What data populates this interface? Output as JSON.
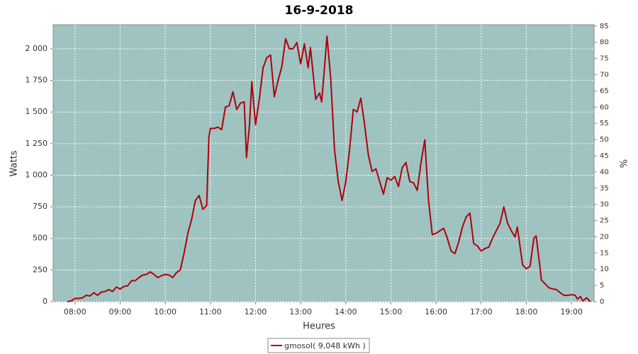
{
  "chart_data": {
    "type": "line",
    "title": "16-9-2018",
    "x_label": "Heures",
    "y_label": "Watts",
    "y2_label": "%",
    "x": [
      "07:50",
      "07:55",
      "08:00",
      "08:05",
      "08:10",
      "08:15",
      "08:20",
      "08:25",
      "08:30",
      "08:35",
      "08:40",
      "08:45",
      "08:50",
      "08:55",
      "09:00",
      "09:05",
      "09:10",
      "09:15",
      "09:20",
      "09:25",
      "09:30",
      "09:35",
      "09:40",
      "09:45",
      "09:50",
      "09:55",
      "10:00",
      "10:05",
      "10:10",
      "10:15",
      "10:20",
      "10:25",
      "10:30",
      "10:35",
      "10:40",
      "10:45",
      "10:50",
      "10:55",
      "10:58",
      "11:00",
      "11:05",
      "11:10",
      "11:15",
      "11:20",
      "11:25",
      "11:30",
      "11:35",
      "11:40",
      "11:45",
      "11:48",
      "11:52",
      "11:55",
      "12:00",
      "12:05",
      "12:10",
      "12:15",
      "12:20",
      "12:25",
      "12:30",
      "12:35",
      "12:40",
      "12:45",
      "12:50",
      "12:55",
      "13:00",
      "13:05",
      "13:10",
      "13:13",
      "13:20",
      "13:25",
      "13:28",
      "13:35",
      "13:40",
      "13:45",
      "13:50",
      "13:55",
      "14:00",
      "14:05",
      "14:10",
      "14:15",
      "14:20",
      "14:25",
      "14:30",
      "14:35",
      "14:40",
      "14:45",
      "14:50",
      "14:55",
      "15:00",
      "15:05",
      "15:10",
      "15:15",
      "15:20",
      "15:25",
      "15:30",
      "15:35",
      "15:40",
      "15:45",
      "15:50",
      "15:55",
      "16:00",
      "16:05",
      "16:10",
      "16:15",
      "16:20",
      "16:25",
      "16:30",
      "16:35",
      "16:40",
      "16:45",
      "16:50",
      "16:55",
      "17:00",
      "17:05",
      "17:10",
      "17:15",
      "17:20",
      "17:25",
      "17:30",
      "17:35",
      "17:40",
      "17:45",
      "17:48",
      "17:55",
      "18:00",
      "18:05",
      "18:10",
      "18:13",
      "18:18",
      "18:20",
      "18:25",
      "18:30",
      "18:35",
      "18:40",
      "18:45",
      "18:50",
      "18:55",
      "19:00",
      "19:05",
      "19:08",
      "19:12",
      "19:15",
      "19:20",
      "19:25"
    ],
    "series": [
      {
        "name": "gmosol( 9,048 kWh )",
        "color": "#b0000a",
        "values": [
          0,
          5,
          25,
          25,
          30,
          50,
          45,
          70,
          50,
          75,
          80,
          95,
          80,
          115,
          100,
          120,
          125,
          165,
          165,
          190,
          210,
          215,
          235,
          215,
          190,
          205,
          215,
          210,
          190,
          230,
          250,
          380,
          540,
          650,
          800,
          840,
          730,
          760,
          1300,
          1370,
          1370,
          1380,
          1360,
          1540,
          1550,
          1660,
          1520,
          1570,
          1580,
          1140,
          1400,
          1740,
          1400,
          1600,
          1850,
          1930,
          1950,
          1620,
          1750,
          1860,
          2080,
          2000,
          2000,
          2050,
          1880,
          2040,
          1850,
          2010,
          1600,
          1650,
          1580,
          2100,
          1760,
          1200,
          950,
          800,
          950,
          1200,
          1520,
          1500,
          1610,
          1400,
          1160,
          1030,
          1050,
          950,
          850,
          980,
          960,
          990,
          910,
          1060,
          1100,
          950,
          940,
          880,
          1100,
          1280,
          800,
          530,
          540,
          560,
          580,
          500,
          400,
          380,
          470,
          590,
          670,
          700,
          460,
          440,
          400,
          420,
          430,
          500,
          560,
          620,
          750,
          620,
          560,
          510,
          590,
          290,
          260,
          280,
          500,
          520,
          280,
          170,
          140,
          110,
          100,
          95,
          70,
          50,
          50,
          55,
          50,
          20,
          40,
          5,
          30,
          0
        ]
      }
    ],
    "xlim": [
      "07:31",
      "19:30"
    ],
    "xticks": [
      "08:00",
      "09:00",
      "10:00",
      "11:00",
      "12:00",
      "13:00",
      "14:00",
      "15:00",
      "16:00",
      "17:00",
      "18:00",
      "19:00"
    ],
    "ylim": [
      0,
      2190
    ],
    "yticks": [
      0,
      250,
      500,
      750,
      {
        "value": 1000,
        "label": "1 000"
      },
      {
        "value": 1250,
        "label": "1 250"
      },
      {
        "value": 1500,
        "label": "1 500"
      },
      {
        "value": 1750,
        "label": "1 750"
      },
      {
        "value": 2000,
        "label": "2 000"
      }
    ],
    "y2lim": [
      0,
      85.4
    ],
    "y2ticks": [
      0,
      5,
      10,
      15,
      20,
      25,
      30,
      35,
      40,
      45,
      50,
      55,
      60,
      65,
      70,
      75,
      80,
      85
    ],
    "grid": true,
    "background": "#9fc3c1"
  }
}
